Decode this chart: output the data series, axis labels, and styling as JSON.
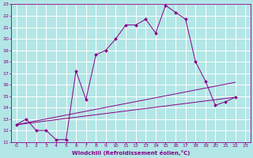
{
  "background_color": "#b3e6e6",
  "grid_color": "#ffffff",
  "line_color": "#880088",
  "xlabel": "Windchill (Refroidissement éolien,°C)",
  "xlim": [
    -0.5,
    23.5
  ],
  "ylim": [
    11,
    23
  ],
  "xticks": [
    0,
    1,
    2,
    3,
    4,
    5,
    6,
    7,
    8,
    9,
    10,
    11,
    12,
    13,
    14,
    15,
    16,
    17,
    18,
    19,
    20,
    21,
    22,
    23
  ],
  "yticks": [
    11,
    12,
    13,
    14,
    15,
    16,
    17,
    18,
    19,
    20,
    21,
    22,
    23
  ],
  "line1_x": [
    0,
    1,
    2,
    3,
    4,
    5,
    6,
    7,
    8,
    9,
    10,
    11,
    12,
    13,
    14,
    15,
    16,
    17,
    18,
    19,
    20,
    21,
    22
  ],
  "line1_y": [
    12.5,
    13.0,
    12.0,
    12.0,
    11.2,
    11.2,
    17.2,
    14.7,
    18.6,
    19.0,
    20.0,
    21.2,
    21.2,
    21.7,
    20.5,
    22.9,
    22.3,
    21.7,
    18.0,
    16.3,
    14.2,
    14.5,
    14.9
  ],
  "line2_x": [
    0,
    22
  ],
  "line2_y": [
    12.5,
    14.9
  ],
  "line3_x": [
    0,
    22
  ],
  "line3_y": [
    12.5,
    16.2
  ]
}
